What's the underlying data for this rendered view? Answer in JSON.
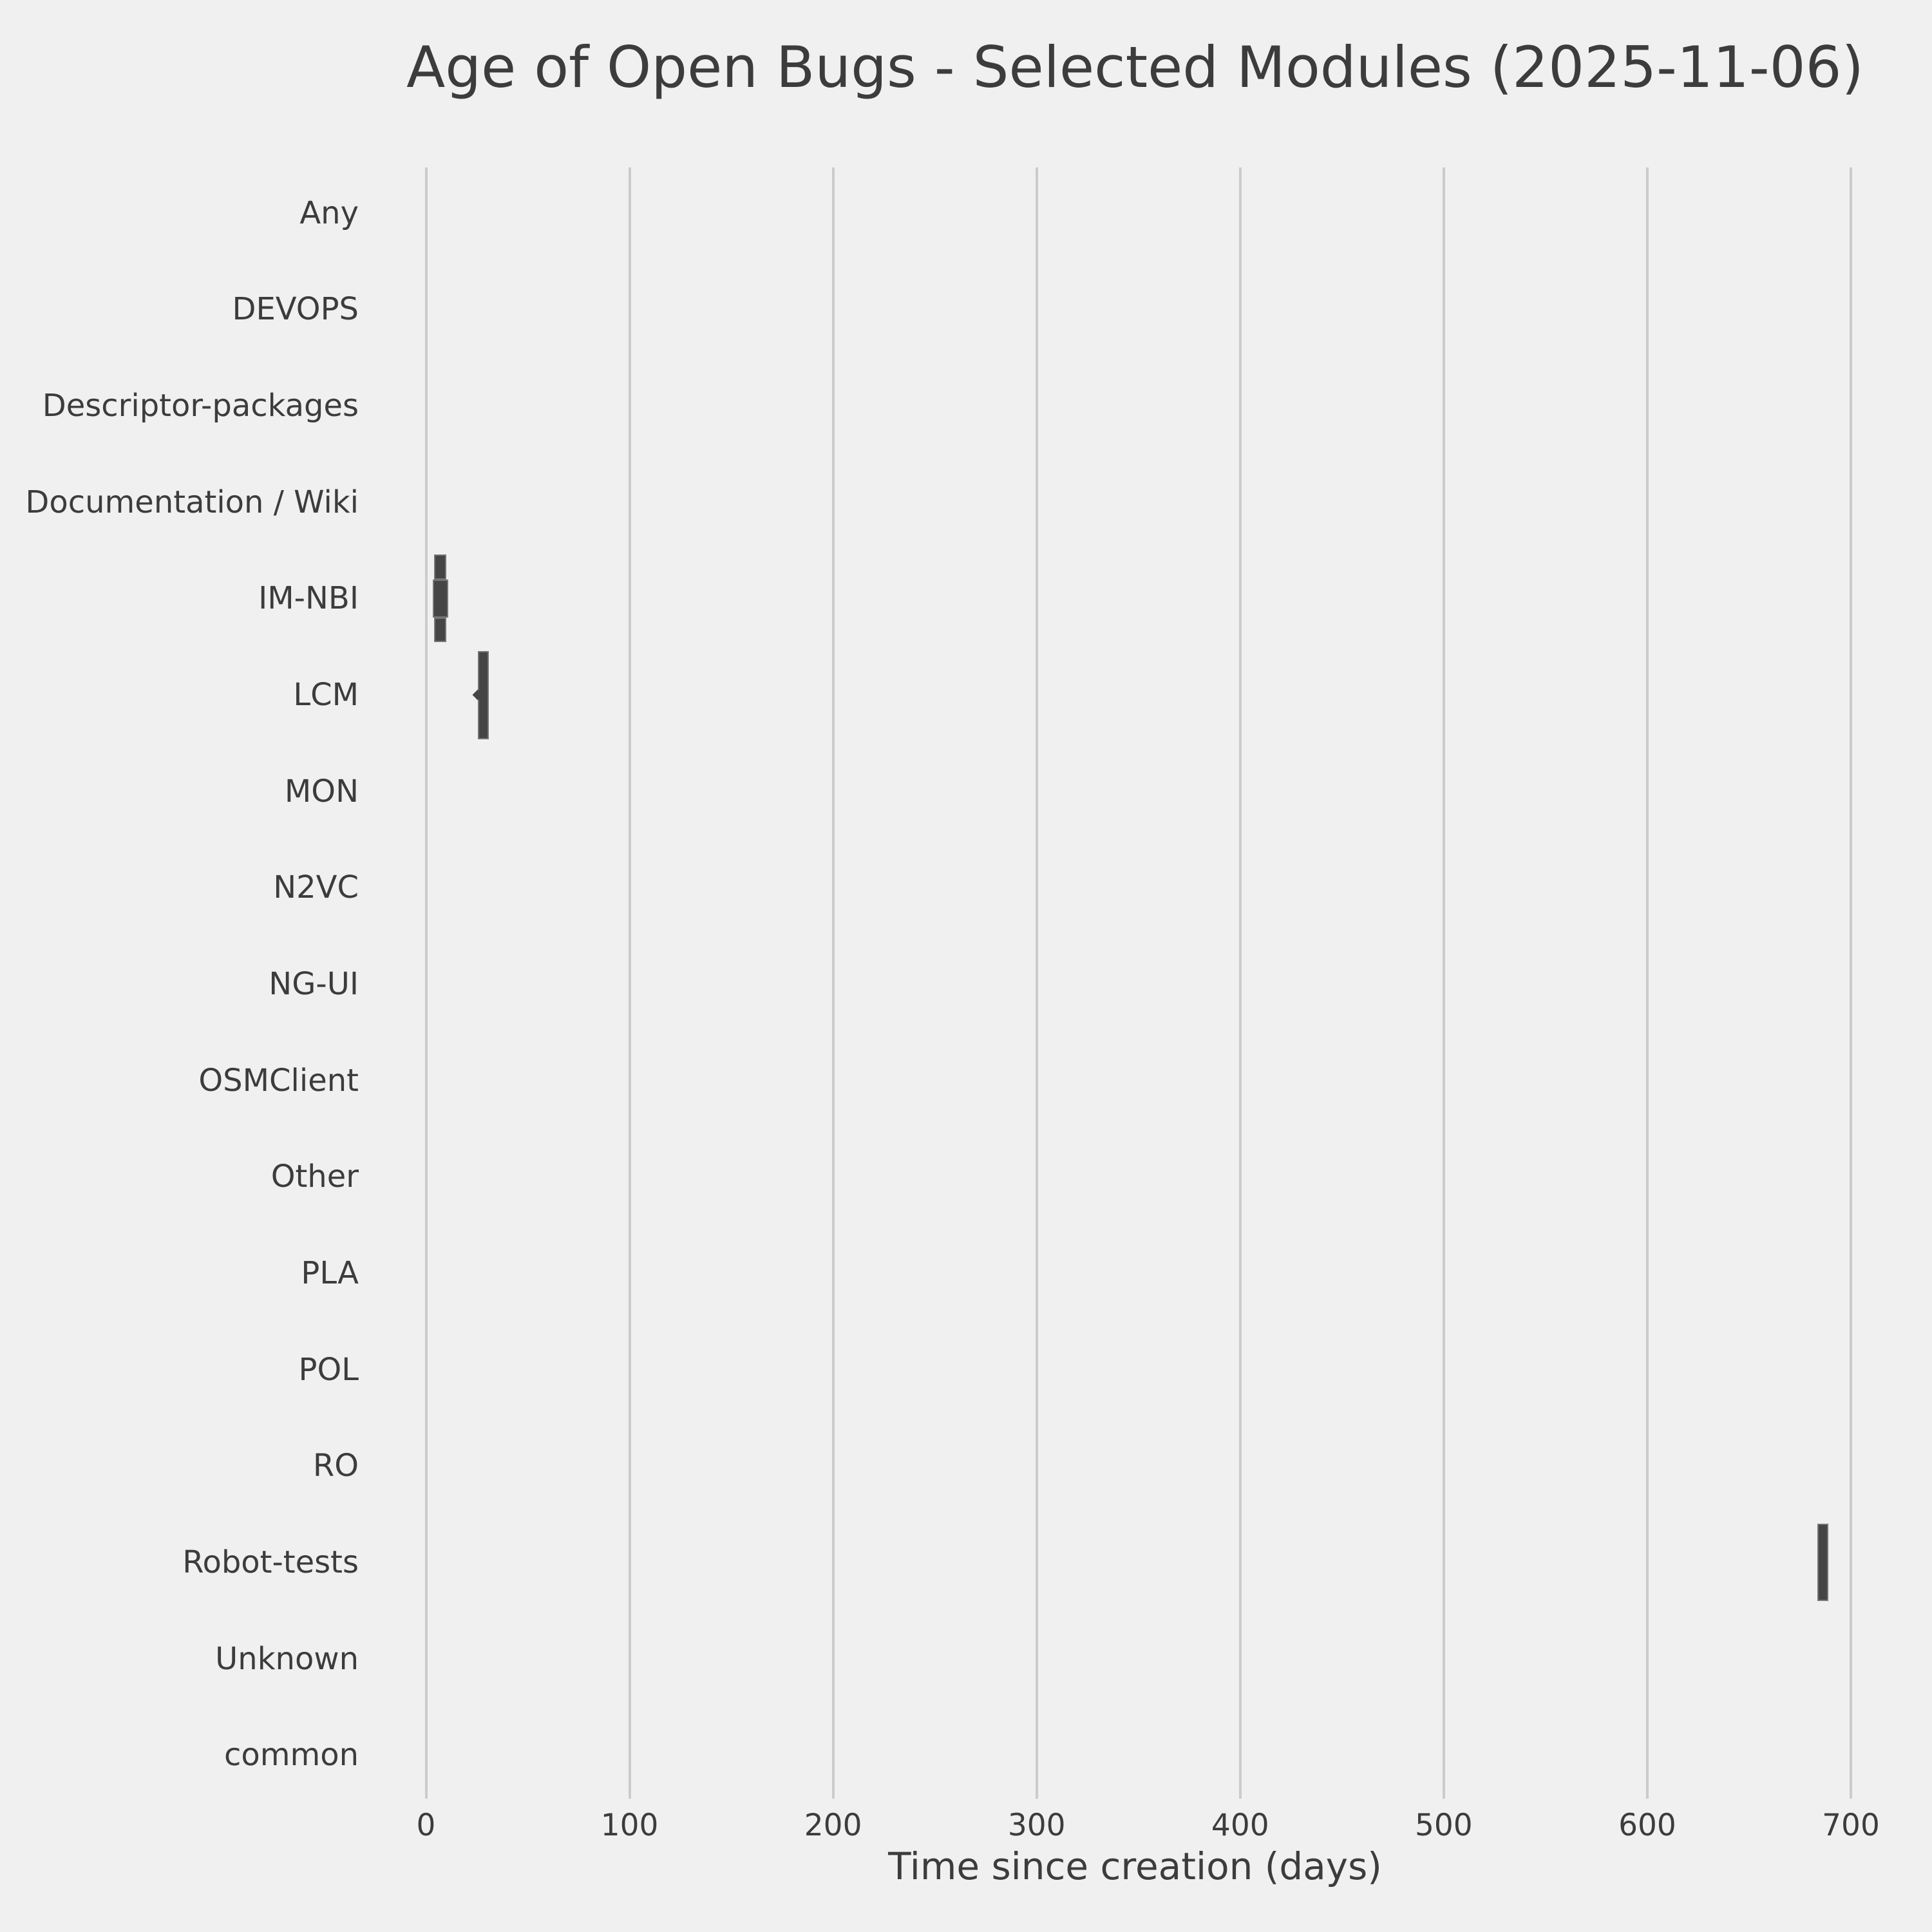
{
  "chart_data": {
    "type": "boxen",
    "title": "Age of Open Bugs - Selected Modules (2025-11-06)",
    "xlabel": "Time since creation (days)",
    "ylabel": "",
    "orientation": "horizontal",
    "xlim": [
      0,
      700
    ],
    "x_ticks": [
      0,
      100,
      200,
      300,
      400,
      500,
      600,
      700
    ],
    "grid": "vertical-only",
    "legend": "none",
    "categories": [
      "Any",
      "DEVOPS",
      "Descriptor-packages",
      "Documentation / Wiki",
      "IM-NBI",
      "LCM",
      "MON",
      "N2VC",
      "NG-UI",
      "OSMClient",
      "Other",
      "PLA",
      "POL",
      "RO",
      "Robot-tests",
      "Unknown",
      "common"
    ],
    "series": [
      {
        "category": "IM-NBI",
        "approx_days": {
          "min": 3.4,
          "max": 10.8,
          "center": 7
        },
        "segments": [
          {
            "x1": 4.05,
            "x2": 10.06,
            "h": 39,
            "dy": -49
          },
          {
            "x1": 3.42,
            "x2": 10.82,
            "h": 59,
            "dy": 0
          },
          {
            "x1": 4.05,
            "x2": 10.06,
            "h": 38,
            "dy": 48.5
          }
        ],
        "diamond_marker_days": null
      },
      {
        "category": "LCM",
        "approx_days": {
          "min": 25.4,
          "max": 30.9,
          "center": 28
        },
        "segments": [
          {
            "x1": 25.4,
            "x2": 30.9,
            "h": 137,
            "dy": 0
          }
        ],
        "diamond_marker_days": 25.6
      },
      {
        "category": "Robot-tests",
        "approx_days": {
          "min": 683.5,
          "max": 689.0,
          "center": 686
        },
        "segments": [
          {
            "x1": 683.5,
            "x2": 689.0,
            "h": 120,
            "dy": 0
          }
        ],
        "diamond_marker_days": null
      }
    ],
    "colors": {
      "background": "#f0f0f0",
      "grid": "#cbcbcb",
      "box_fill": "#454545",
      "box_edge": "#757575",
      "text": "#3c3c3c"
    }
  }
}
